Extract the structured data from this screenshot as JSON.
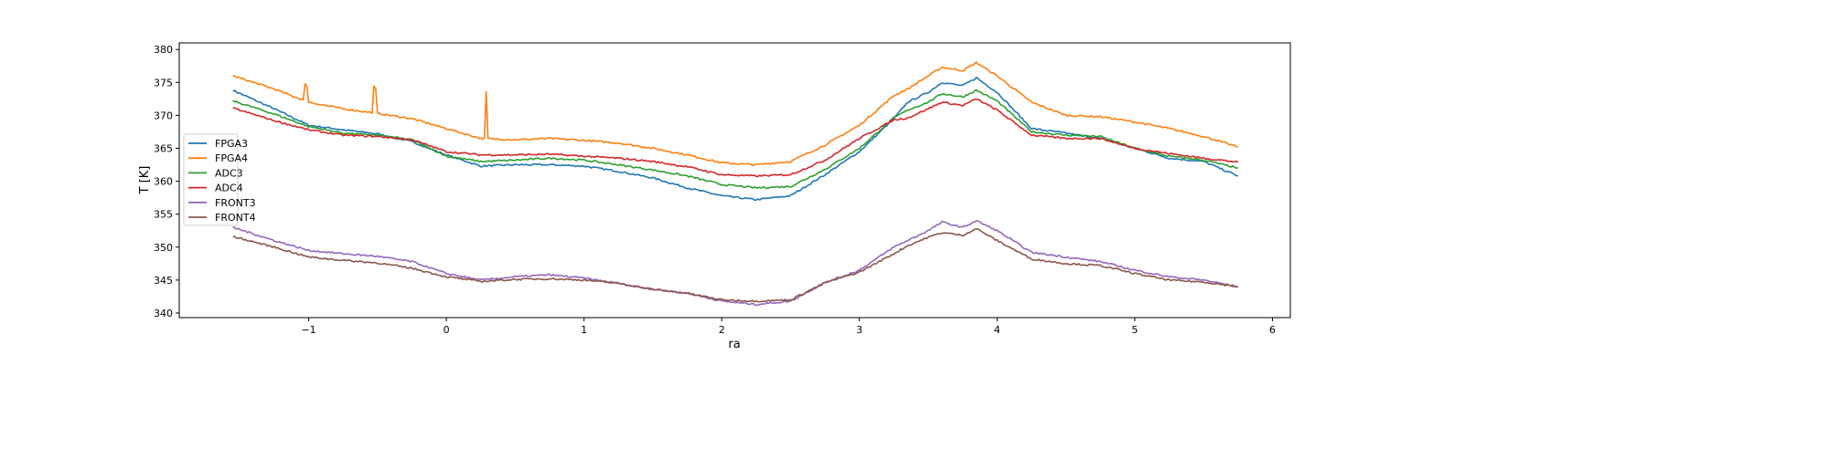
{
  "chart_data": {
    "type": "line",
    "title": "",
    "xlabel": "ra",
    "ylabel": "T [K]",
    "xlim": [
      -1.94,
      6.13
    ],
    "ylim": [
      339.3,
      381.0
    ],
    "xticks": [
      -1,
      0,
      1,
      2,
      3,
      4,
      5,
      6
    ],
    "yticks": [
      340,
      345,
      350,
      355,
      360,
      365,
      370,
      375,
      380
    ],
    "grid": false,
    "legend_position": "center-left",
    "x": [
      -1.55,
      -1.25,
      -1.0,
      -0.75,
      -0.5,
      -0.25,
      0,
      0.25,
      0.5,
      0.75,
      1.0,
      1.25,
      1.5,
      1.75,
      2.0,
      2.25,
      2.5,
      2.75,
      3.0,
      3.25,
      3.35,
      3.5,
      3.6,
      3.75,
      3.85,
      4.0,
      4.25,
      4.5,
      4.75,
      5.0,
      5.25,
      5.5,
      5.75
    ],
    "series": [
      {
        "name": "FPGA3",
        "color": "#1f77b4",
        "values": [
          373.8,
          371,
          368.5,
          367.8,
          367.2,
          366,
          364,
          362.3,
          362.5,
          362.5,
          362.3,
          361.5,
          360.5,
          359,
          357.8,
          357.2,
          357.8,
          361,
          364.5,
          369.5,
          372,
          373.5,
          375,
          374.5,
          375.7,
          373.5,
          368,
          367.3,
          366.5,
          365,
          363.5,
          363,
          360.8
        ]
      },
      {
        "name": "FPGA4",
        "color": "#ff7f0e",
        "values": [
          376,
          374,
          372,
          371,
          370.3,
          369.5,
          368,
          366.5,
          366.3,
          366.5,
          366.2,
          365.8,
          365,
          364,
          362.8,
          362.5,
          363,
          365.5,
          368.5,
          373,
          374,
          376,
          377.3,
          376.8,
          378,
          376,
          372,
          370,
          369.8,
          369,
          368,
          366.8,
          365.2
        ],
        "spikes": [
          {
            "x": -1.02,
            "y": 377.6
          },
          {
            "x": -0.52,
            "y": 378.9
          },
          {
            "x": 0.29,
            "y": 373.9
          }
        ]
      },
      {
        "name": "ADC3",
        "color": "#2ca02c",
        "values": [
          372.2,
          370.2,
          368.3,
          367.3,
          367,
          366.3,
          363.8,
          363,
          363.2,
          363.5,
          363.2,
          362.5,
          361.7,
          360.8,
          359.5,
          359,
          359.2,
          361.8,
          365,
          369.6,
          370.8,
          372,
          373.3,
          372.8,
          373.8,
          372.2,
          367.5,
          367,
          366.8,
          365,
          363.8,
          363.2,
          362
        ]
      },
      {
        "name": "ADC4",
        "color": "#d62728",
        "values": [
          371.1,
          369.2,
          367.8,
          367,
          366.8,
          366.3,
          364.5,
          364,
          364,
          364.1,
          363.8,
          363.5,
          363,
          362.2,
          361,
          360.8,
          361,
          363.2,
          366.5,
          369.3,
          369.6,
          371,
          372,
          371.5,
          372.5,
          370.8,
          367,
          366.5,
          366.5,
          365,
          364.2,
          363.5,
          362.9
        ]
      },
      {
        "name": "FRONT3",
        "color": "#9467bd",
        "values": [
          353,
          351,
          349.5,
          349,
          348.6,
          347.8,
          346,
          345,
          345.5,
          345.8,
          345.3,
          344.5,
          343.6,
          343,
          341.8,
          341.3,
          341.8,
          344.6,
          346.5,
          350,
          351,
          352.5,
          353.8,
          353,
          354,
          352.5,
          349.2,
          348.5,
          347.8,
          346.5,
          345.5,
          345,
          344
        ]
      },
      {
        "name": "FRONT4",
        "color": "#8c564b",
        "values": [
          351.6,
          350,
          348.5,
          348,
          347.6,
          346.8,
          345.5,
          344.8,
          345.1,
          345.2,
          345,
          344.5,
          343.6,
          343,
          342,
          341.8,
          342,
          344.6,
          346.2,
          349,
          350.2,
          351.5,
          352.2,
          351.8,
          352.8,
          351,
          348.2,
          347.5,
          347.2,
          346,
          345,
          344.7,
          344
        ]
      }
    ]
  }
}
